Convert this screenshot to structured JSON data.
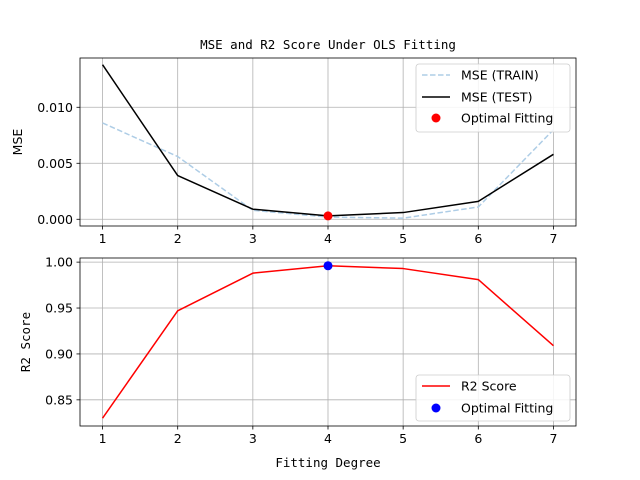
{
  "chart_data": [
    {
      "type": "line",
      "title": "MSE and R2 Score Under OLS Fitting",
      "xlabel": "",
      "ylabel": "MSE",
      "x": [
        1,
        2,
        3,
        4,
        5,
        6,
        7
      ],
      "xlim": [
        0.7,
        7.3
      ],
      "ylim": [
        -0.0006,
        0.0144
      ],
      "yticks": [
        "0.000",
        "0.005",
        "0.010"
      ],
      "ytick_values": [
        0,
        0.005,
        0.01
      ],
      "grid": true,
      "legend_position": "top-right",
      "series": [
        {
          "name": "MSE (TRAIN)",
          "values": [
            0.0086,
            0.0056,
            0.0008,
            0.0002,
            0.0001,
            0.0011,
            0.008
          ],
          "color": "#aecde6",
          "style": "dashed"
        },
        {
          "name": "MSE (TEST)",
          "values": [
            0.0138,
            0.0039,
            0.0009,
            0.0003,
            0.0006,
            0.0016,
            0.0058
          ],
          "color": "#000000",
          "style": "solid"
        },
        {
          "name": "Optimal Fitting",
          "type": "marker",
          "x": [
            4
          ],
          "values": [
            0.0003
          ],
          "color": "#ff0000"
        }
      ]
    },
    {
      "type": "line",
      "title": "",
      "xlabel": "Fitting Degree",
      "ylabel": "R2 Score",
      "x": [
        1,
        2,
        3,
        4,
        5,
        6,
        7
      ],
      "xlim": [
        0.7,
        7.3
      ],
      "ylim": [
        0.8215,
        1.0045
      ],
      "yticks": [
        "0.85",
        "0.90",
        "0.95",
        "1.00"
      ],
      "ytick_values": [
        0.85,
        0.9,
        0.95,
        1.0
      ],
      "grid": true,
      "legend_position": "bottom-right",
      "series": [
        {
          "name": "R2 Score",
          "values": [
            0.83,
            0.947,
            0.988,
            0.996,
            0.993,
            0.981,
            0.909
          ],
          "color": "#ff0000",
          "style": "solid"
        },
        {
          "name": "Optimal Fitting",
          "type": "marker",
          "x": [
            4
          ],
          "values": [
            0.996
          ],
          "color": "#0000ff"
        }
      ]
    }
  ],
  "xticks": [
    "1",
    "2",
    "3",
    "4",
    "5",
    "6",
    "7"
  ]
}
